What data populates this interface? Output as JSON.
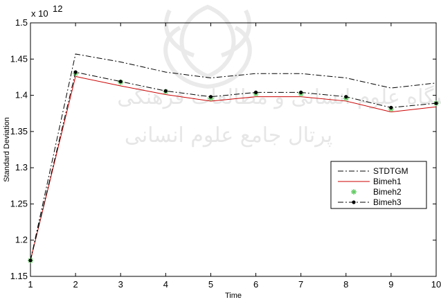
{
  "chart_data": {
    "type": "line",
    "title": "",
    "xlabel": "Time",
    "ylabel": "Standard Deviation",
    "exponent_label": "x 10",
    "exponent_power": "12",
    "xlim": [
      1,
      10
    ],
    "ylim": [
      1.15,
      1.5
    ],
    "xticks": [
      "1",
      "2",
      "3",
      "4",
      "5",
      "6",
      "7",
      "8",
      "9",
      "10"
    ],
    "yticks": [
      "1.15",
      "1.2",
      "1.25",
      "1.3",
      "1.35",
      "1.4",
      "1.45",
      "1.5"
    ],
    "x": [
      1,
      2,
      3,
      4,
      5,
      6,
      7,
      8,
      9,
      10
    ],
    "series": [
      {
        "name": "STDTGM",
        "style": "dash-dot",
        "color": "#000000",
        "values": [
          1.172,
          1.457,
          1.446,
          1.432,
          1.424,
          1.43,
          1.43,
          1.424,
          1.41,
          1.417
        ]
      },
      {
        "name": "Bimeh1",
        "style": "solid",
        "color": "#cc0000",
        "values": [
          1.172,
          1.426,
          1.413,
          1.401,
          1.392,
          1.398,
          1.398,
          1.392,
          1.377,
          1.384
        ]
      },
      {
        "name": "Bimeh2",
        "style": "star-markers",
        "color": "#66cc66",
        "values": [
          1.172,
          1.43,
          1.418,
          1.405,
          1.396,
          1.402,
          1.402,
          1.396,
          1.381,
          1.389
        ]
      },
      {
        "name": "Bimeh3",
        "style": "dash-dot-dots",
        "color": "#000000",
        "values": [
          1.172,
          1.432,
          1.419,
          1.406,
          1.398,
          1.404,
          1.404,
          1.398,
          1.383,
          1.389
        ]
      }
    ],
    "grid": false,
    "legend_position": "right"
  },
  "watermark": {
    "line1": "پژوهشگاه علوم انسانی و مطالعات فرهنگی",
    "line2": "پرتال جامع علوم انسانی"
  }
}
